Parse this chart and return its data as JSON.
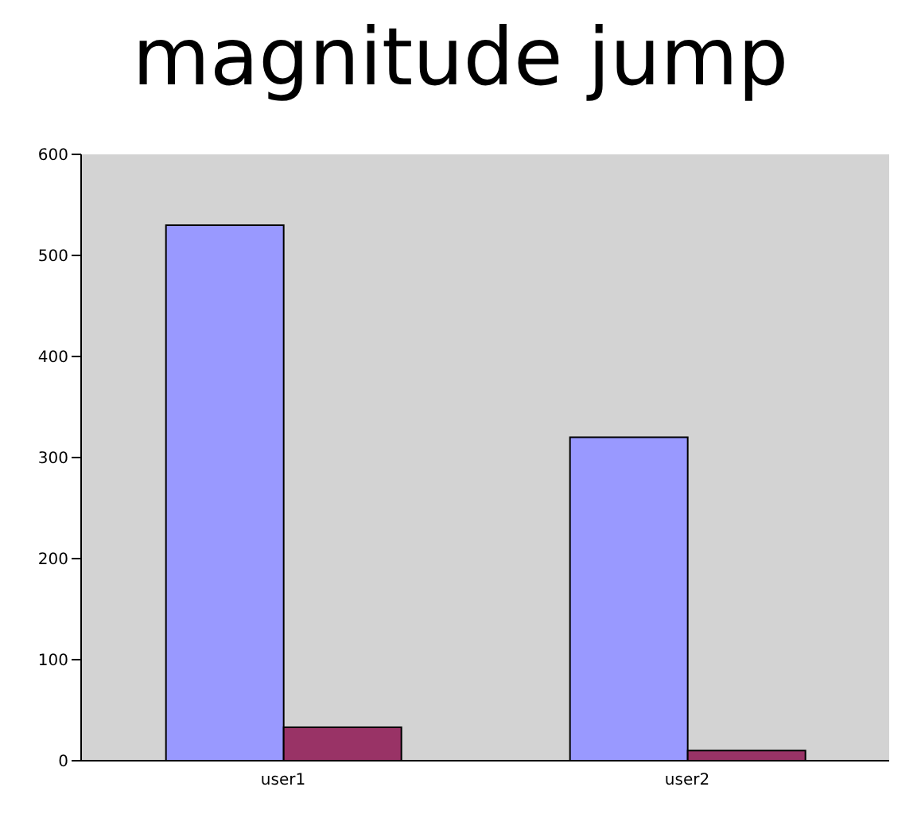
{
  "chart_data": {
    "type": "bar",
    "title": "magnitude jump",
    "categories": [
      "user1",
      "user2"
    ],
    "series": [
      {
        "color": "#9999ff",
        "values": [
          530,
          320
        ]
      },
      {
        "color": "#993366",
        "values": [
          33,
          10
        ]
      }
    ],
    "ylim": [
      0,
      600
    ],
    "yticks": [
      0,
      100,
      200,
      300,
      400,
      500,
      600
    ],
    "grid": false,
    "legend": false
  }
}
